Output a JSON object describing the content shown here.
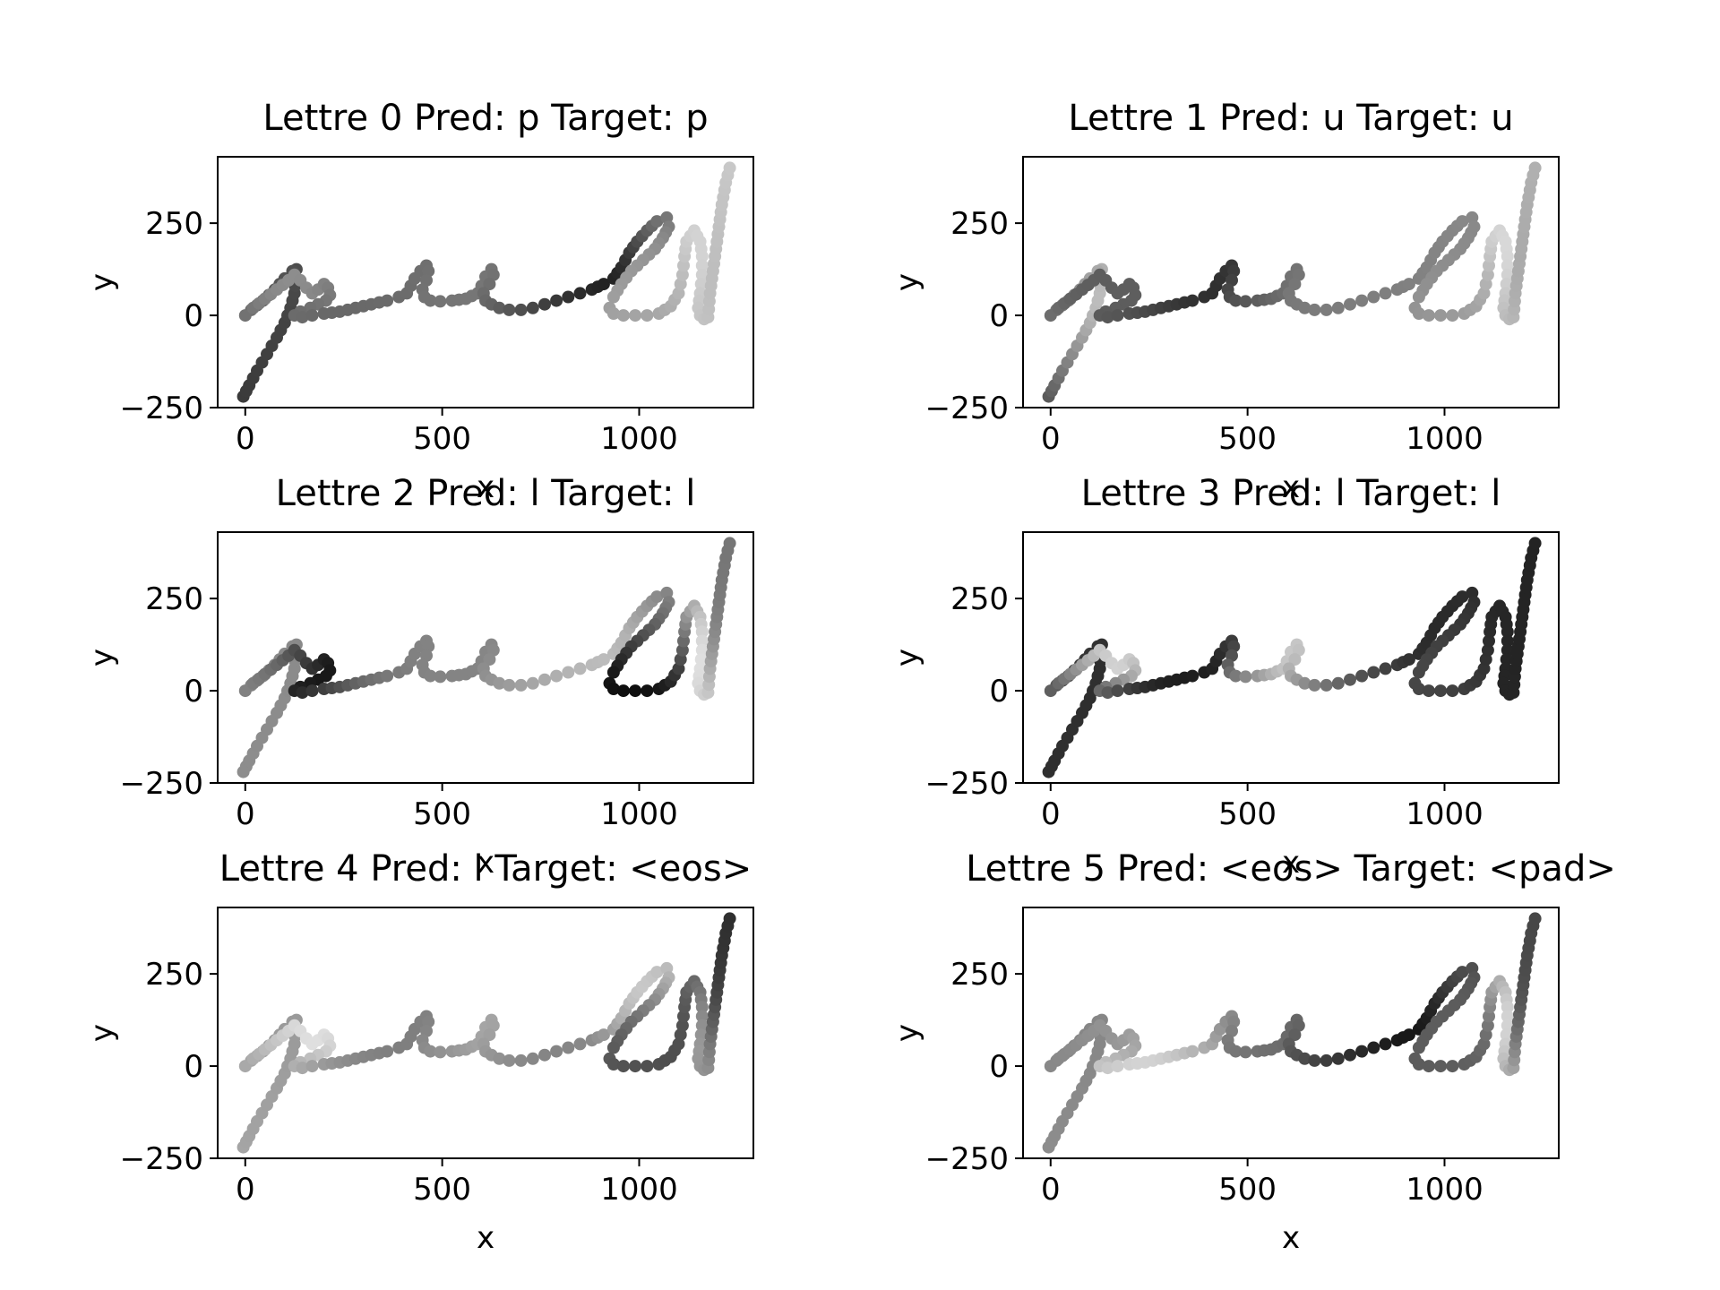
{
  "figure": {
    "stroke_path": [
      [
        -5,
        -220
      ],
      [
        10,
        -190
      ],
      [
        30,
        -150
      ],
      [
        55,
        -105
      ],
      [
        80,
        -60
      ],
      [
        100,
        -20
      ],
      [
        115,
        20
      ],
      [
        125,
        60
      ],
      [
        128,
        100
      ],
      [
        130,
        125
      ],
      [
        120,
        120
      ],
      [
        100,
        100
      ],
      [
        75,
        70
      ],
      [
        45,
        40
      ],
      [
        15,
        15
      ],
      [
        0,
        0
      ],
      [
        20,
        20
      ],
      [
        50,
        45
      ],
      [
        80,
        70
      ],
      [
        110,
        95
      ],
      [
        125,
        110
      ],
      [
        140,
        95
      ],
      [
        155,
        75
      ],
      [
        170,
        60
      ],
      [
        185,
        70
      ],
      [
        200,
        85
      ],
      [
        210,
        75
      ],
      [
        215,
        55
      ],
      [
        205,
        40
      ],
      [
        185,
        30
      ],
      [
        165,
        20
      ],
      [
        140,
        10
      ],
      [
        125,
        0
      ],
      [
        145,
        -5
      ],
      [
        170,
        0
      ],
      [
        200,
        5
      ],
      [
        240,
        10
      ],
      [
        280,
        20
      ],
      [
        320,
        30
      ],
      [
        360,
        40
      ],
      [
        390,
        50
      ],
      [
        410,
        60
      ],
      [
        420,
        80
      ],
      [
        430,
        100
      ],
      [
        445,
        120
      ],
      [
        460,
        135
      ],
      [
        465,
        120
      ],
      [
        460,
        95
      ],
      [
        450,
        70
      ],
      [
        455,
        50
      ],
      [
        470,
        40
      ],
      [
        495,
        38
      ],
      [
        525,
        40
      ],
      [
        560,
        45
      ],
      [
        590,
        60
      ],
      [
        600,
        80
      ],
      [
        610,
        105
      ],
      [
        625,
        125
      ],
      [
        630,
        110
      ],
      [
        620,
        85
      ],
      [
        605,
        60
      ],
      [
        610,
        40
      ],
      [
        625,
        30
      ],
      [
        645,
        20
      ],
      [
        670,
        15
      ],
      [
        700,
        15
      ],
      [
        730,
        20
      ],
      [
        760,
        30
      ],
      [
        790,
        40
      ],
      [
        820,
        50
      ],
      [
        850,
        60
      ],
      [
        880,
        70
      ],
      [
        910,
        85
      ],
      [
        935,
        100
      ],
      [
        955,
        130
      ],
      [
        975,
        170
      ],
      [
        995,
        200
      ],
      [
        1020,
        230
      ],
      [
        1045,
        255
      ],
      [
        1070,
        265
      ],
      [
        1075,
        240
      ],
      [
        1060,
        210
      ],
      [
        1040,
        180
      ],
      [
        1010,
        150
      ],
      [
        980,
        120
      ],
      [
        955,
        85
      ],
      [
        935,
        50
      ],
      [
        925,
        20
      ],
      [
        935,
        5
      ],
      [
        960,
        0
      ],
      [
        990,
        0
      ],
      [
        1020,
        0
      ],
      [
        1050,
        5
      ],
      [
        1080,
        25
      ],
      [
        1100,
        60
      ],
      [
        1110,
        110
      ],
      [
        1115,
        160
      ],
      [
        1120,
        200
      ],
      [
        1140,
        230
      ],
      [
        1155,
        200
      ],
      [
        1160,
        160
      ],
      [
        1160,
        110
      ],
      [
        1155,
        60
      ],
      [
        1150,
        20
      ],
      [
        1155,
        0
      ],
      [
        1165,
        -10
      ],
      [
        1175,
        -5
      ],
      [
        1180,
        60
      ],
      [
        1190,
        140
      ],
      [
        1200,
        220
      ],
      [
        1210,
        300
      ],
      [
        1220,
        360
      ],
      [
        1230,
        400
      ]
    ],
    "color_scale": "greys",
    "panel_colorings": [
      {
        "start_gray": 0.25,
        "end_gray": 0.85,
        "peaks": [
          [
            0.2,
            0.6
          ],
          [
            0.55,
            0.15
          ],
          [
            0.82,
            0.9
          ]
        ]
      },
      {
        "start_gray": 0.3,
        "end_gray": 0.75,
        "peaks": [
          [
            0.08,
            0.8
          ],
          [
            0.35,
            0.2
          ],
          [
            0.82,
            0.92
          ]
        ]
      },
      {
        "start_gray": 0.6,
        "end_gray": 0.5,
        "peaks": [
          [
            0.25,
            0.1
          ],
          [
            0.55,
            0.8
          ],
          [
            0.72,
            0.05
          ],
          [
            0.85,
            0.95
          ]
        ]
      },
      {
        "start_gray": 0.2,
        "end_gray": 0.15,
        "peaks": [
          [
            0.22,
            0.9
          ],
          [
            0.35,
            0.1
          ],
          [
            0.45,
            0.85
          ],
          [
            0.7,
            0.3
          ]
        ]
      },
      {
        "start_gray": 0.7,
        "end_gray": 0.2,
        "peaks": [
          [
            0.22,
            0.95
          ],
          [
            0.45,
            0.7
          ],
          [
            0.6,
            0.85
          ],
          [
            0.86,
            0.65
          ]
        ]
      },
      {
        "start_gray": 0.6,
        "end_gray": 0.3,
        "peaks": [
          [
            0.2,
            0.6
          ],
          [
            0.3,
            0.9
          ],
          [
            0.55,
            0.1
          ],
          [
            0.84,
            0.9
          ]
        ]
      }
    ]
  },
  "chart_data": [
    {
      "type": "scatter",
      "title": "Lettre 0 Pred: p Target: p",
      "xlabel": "x",
      "ylabel": "y",
      "xlim": [
        -70,
        1290
      ],
      "ylim": [
        -250,
        430
      ],
      "xticks": [
        0,
        500,
        1000
      ],
      "yticks": [
        -250,
        0,
        250
      ],
      "xtick_labels": [
        "0",
        "500",
        "1000"
      ],
      "ytick_labels": [
        "−250",
        "0",
        "250"
      ]
    },
    {
      "type": "scatter",
      "title": "Lettre 1 Pred: u Target: u",
      "xlabel": "x",
      "ylabel": "y",
      "xlim": [
        -70,
        1290
      ],
      "ylim": [
        -250,
        430
      ],
      "xticks": [
        0,
        500,
        1000
      ],
      "yticks": [
        -250,
        0,
        250
      ],
      "xtick_labels": [
        "0",
        "500",
        "1000"
      ],
      "ytick_labels": [
        "−250",
        "0",
        "250"
      ]
    },
    {
      "type": "scatter",
      "title": "Lettre 2 Pred: l Target: l",
      "xlabel": "x",
      "ylabel": "y",
      "xlim": [
        -70,
        1290
      ],
      "ylim": [
        -250,
        430
      ],
      "xticks": [
        0,
        500,
        1000
      ],
      "yticks": [
        -250,
        0,
        250
      ],
      "xtick_labels": [
        "0",
        "500",
        "1000"
      ],
      "ytick_labels": [
        "−250",
        "0",
        "250"
      ]
    },
    {
      "type": "scatter",
      "title": "Lettre 3 Pred: l Target: l",
      "xlabel": "x",
      "ylabel": "y",
      "xlim": [
        -70,
        1290
      ],
      "ylim": [
        -250,
        430
      ],
      "xticks": [
        0,
        500,
        1000
      ],
      "yticks": [
        -250,
        0,
        250
      ],
      "xtick_labels": [
        "0",
        "500",
        "1000"
      ],
      "ytick_labels": [
        "−250",
        "0",
        "250"
      ]
    },
    {
      "type": "scatter",
      "title": "Lettre 4 Pred: l Target: <eos>",
      "xlabel": "x",
      "ylabel": "y",
      "xlim": [
        -70,
        1290
      ],
      "ylim": [
        -250,
        430
      ],
      "xticks": [
        0,
        500,
        1000
      ],
      "yticks": [
        -250,
        0,
        250
      ],
      "xtick_labels": [
        "0",
        "500",
        "1000"
      ],
      "ytick_labels": [
        "−250",
        "0",
        "250"
      ]
    },
    {
      "type": "scatter",
      "title": "Lettre 5 Pred: <eos> Target: <pad>",
      "xlabel": "x",
      "ylabel": "y",
      "xlim": [
        -70,
        1290
      ],
      "ylim": [
        -250,
        430
      ],
      "xticks": [
        0,
        500,
        1000
      ],
      "yticks": [
        -250,
        0,
        250
      ],
      "xtick_labels": [
        "0",
        "500",
        "1000"
      ],
      "ytick_labels": [
        "−250",
        "0",
        "250"
      ]
    }
  ]
}
